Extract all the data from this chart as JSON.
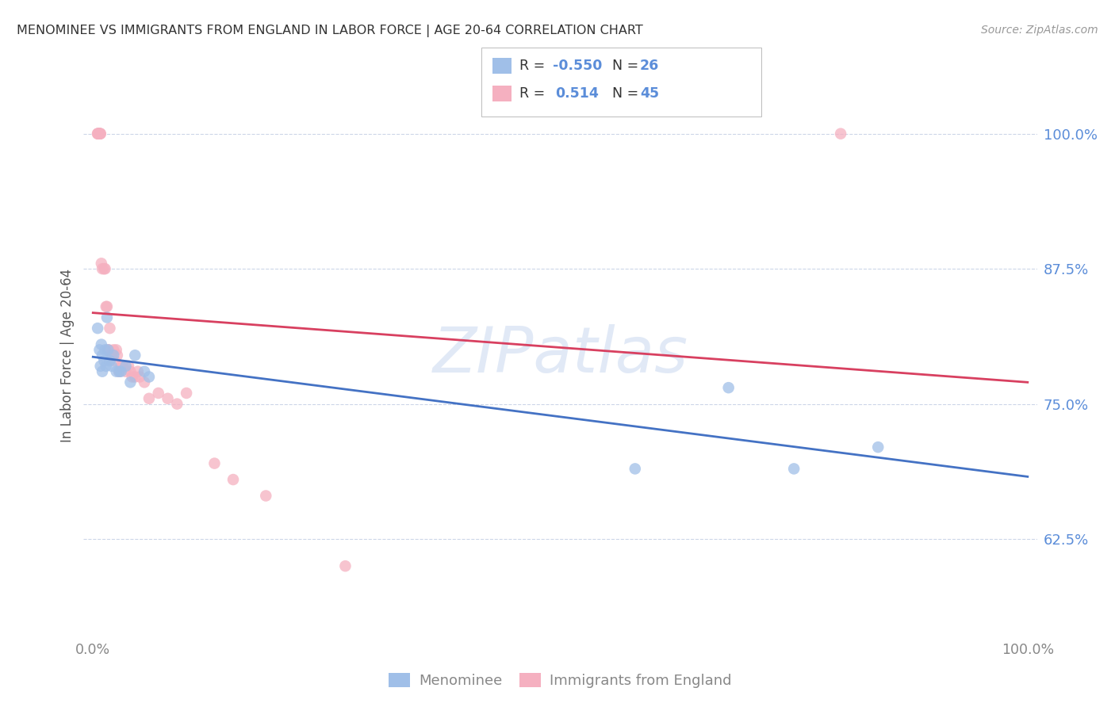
{
  "title": "MENOMINEE VS IMMIGRANTS FROM ENGLAND IN LABOR FORCE | AGE 20-64 CORRELATION CHART",
  "source": "Source: ZipAtlas.com",
  "ylabel": "In Labor Force | Age 20-64",
  "yticks": [
    0.625,
    0.75,
    0.875,
    1.0
  ],
  "ytick_labels": [
    "62.5%",
    "75.0%",
    "87.5%",
    "100.0%"
  ],
  "xlim": [
    -0.01,
    1.01
  ],
  "ylim": [
    0.535,
    1.055
  ],
  "menominee_x": [
    0.005,
    0.007,
    0.008,
    0.009,
    0.01,
    0.01,
    0.012,
    0.013,
    0.014,
    0.015,
    0.016,
    0.018,
    0.02,
    0.022,
    0.025,
    0.028,
    0.03,
    0.035,
    0.04,
    0.045,
    0.055,
    0.06,
    0.58,
    0.68,
    0.75,
    0.84
  ],
  "menominee_y": [
    0.82,
    0.8,
    0.785,
    0.805,
    0.795,
    0.78,
    0.79,
    0.8,
    0.785,
    0.83,
    0.8,
    0.79,
    0.785,
    0.795,
    0.78,
    0.78,
    0.78,
    0.785,
    0.77,
    0.795,
    0.78,
    0.775,
    0.69,
    0.765,
    0.69,
    0.71
  ],
  "england_x": [
    0.005,
    0.005,
    0.006,
    0.006,
    0.007,
    0.007,
    0.007,
    0.008,
    0.008,
    0.009,
    0.01,
    0.012,
    0.013,
    0.014,
    0.015,
    0.016,
    0.017,
    0.018,
    0.02,
    0.02,
    0.022,
    0.023,
    0.025,
    0.026,
    0.028,
    0.03,
    0.032,
    0.035,
    0.038,
    0.04,
    0.042,
    0.045,
    0.048,
    0.05,
    0.055,
    0.06,
    0.07,
    0.08,
    0.09,
    0.1,
    0.13,
    0.15,
    0.185,
    0.27,
    0.8
  ],
  "england_y": [
    1.0,
    1.0,
    1.0,
    1.0,
    1.0,
    1.0,
    1.0,
    1.0,
    1.0,
    0.88,
    0.875,
    0.875,
    0.875,
    0.84,
    0.84,
    0.8,
    0.8,
    0.82,
    0.795,
    0.795,
    0.8,
    0.79,
    0.8,
    0.795,
    0.78,
    0.785,
    0.785,
    0.78,
    0.785,
    0.78,
    0.775,
    0.775,
    0.78,
    0.775,
    0.77,
    0.755,
    0.76,
    0.755,
    0.75,
    0.76,
    0.695,
    0.68,
    0.665,
    0.6,
    1.0
  ],
  "menominee_color": "#a0bfe8",
  "england_color": "#f5b0c0",
  "menominee_line_color": "#4472c4",
  "england_line_color": "#d84060",
  "r_menominee": -0.55,
  "n_menominee": 26,
  "r_england": 0.514,
  "n_england": 45,
  "label_color": "#5b8dd9",
  "watermark": "ZIPatlas",
  "background_color": "#ffffff",
  "grid_color": "#ccd6e8"
}
